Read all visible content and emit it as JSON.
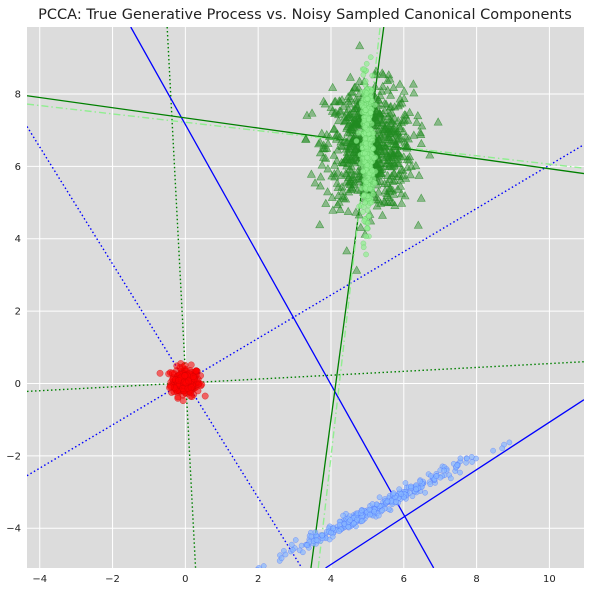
{
  "chart_data": {
    "type": "scatter",
    "title": "PCCA: True Generative Process vs. Noisy Sampled Canonical Components",
    "xlabel": "",
    "ylabel": "",
    "xlim": [
      -4.35,
      10.95
    ],
    "ylim": [
      -5.1,
      9.85
    ],
    "xticks": [
      -4,
      -2,
      0,
      2,
      4,
      6,
      8,
      10
    ],
    "yticks": [
      -4,
      -2,
      0,
      2,
      4,
      6,
      8
    ],
    "grid": true,
    "colors": {
      "background": "#dcdcdc",
      "grid": "#ffffff",
      "blue": "#0000ff",
      "green": "#008000",
      "lightgreen": "#90ee90",
      "red": "#ff0000",
      "lightblue": "#87b6ff",
      "triangles": "#228b22"
    },
    "clusters": [
      {
        "name": "",
        "marker": "circle",
        "color": "red",
        "center": [
          0.0,
          0.05
        ],
        "spread": [
          0.2,
          0.2
        ],
        "rotation_deg": 0,
        "count": 220
      },
      {
        "name": "",
        "marker": "triangle",
        "color": "triangles",
        "center": [
          5.05,
          6.55
        ],
        "spread": [
          0.6,
          0.85
        ],
        "rotation_deg": 0,
        "count": 700
      },
      {
        "name": "",
        "marker": "ellipse-band",
        "color": "lightgreen",
        "center": [
          5.0,
          6.55
        ],
        "spread": [
          0.08,
          0.95
        ],
        "rotation_deg": 0,
        "count": 320
      },
      {
        "name": "",
        "marker": "ellipse-band",
        "color": "lightblue",
        "center": [
          5.05,
          -3.55
        ],
        "spread": [
          1.45,
          0.09
        ],
        "rotation_deg": 27,
        "count": 320
      }
    ],
    "lines": [
      {
        "name": "",
        "color": "blue",
        "style": "dotted",
        "points": [
          [
            -4.35,
            -2.55
          ],
          [
            10.95,
            6.6
          ]
        ]
      },
      {
        "name": "",
        "color": "blue",
        "style": "dotted",
        "points": [
          [
            -4.35,
            7.1
          ],
          [
            3.2,
            -5.1
          ]
        ]
      },
      {
        "name": "",
        "color": "green",
        "style": "dotted",
        "points": [
          [
            -4.35,
            -0.22
          ],
          [
            10.95,
            0.6
          ]
        ]
      },
      {
        "name": "",
        "color": "green",
        "style": "dotted",
        "points": [
          [
            -0.5,
            9.85
          ],
          [
            0.28,
            -5.1
          ]
        ]
      },
      {
        "name": "",
        "color": "blue",
        "style": "solid",
        "points": [
          [
            -1.5,
            9.85
          ],
          [
            6.82,
            -5.1
          ]
        ]
      },
      {
        "name": "",
        "color": "blue",
        "style": "solid",
        "points": [
          [
            3.85,
            -5.1
          ],
          [
            10.95,
            -0.45
          ]
        ]
      },
      {
        "name": "",
        "color": "green",
        "style": "solid",
        "points": [
          [
            -4.35,
            7.95
          ],
          [
            10.95,
            5.8
          ]
        ]
      },
      {
        "name": "",
        "color": "green",
        "style": "solid",
        "points": [
          [
            3.45,
            -5.1
          ],
          [
            5.45,
            9.85
          ]
        ]
      },
      {
        "name": "",
        "color": "lightgreen",
        "style": "dashdot",
        "points": [
          [
            -4.35,
            7.72
          ],
          [
            10.95,
            5.95
          ]
        ]
      },
      {
        "name": "",
        "color": "lightgreen",
        "style": "dashdot",
        "points": [
          [
            3.65,
            -5.1
          ],
          [
            5.35,
            9.85
          ]
        ]
      }
    ]
  }
}
